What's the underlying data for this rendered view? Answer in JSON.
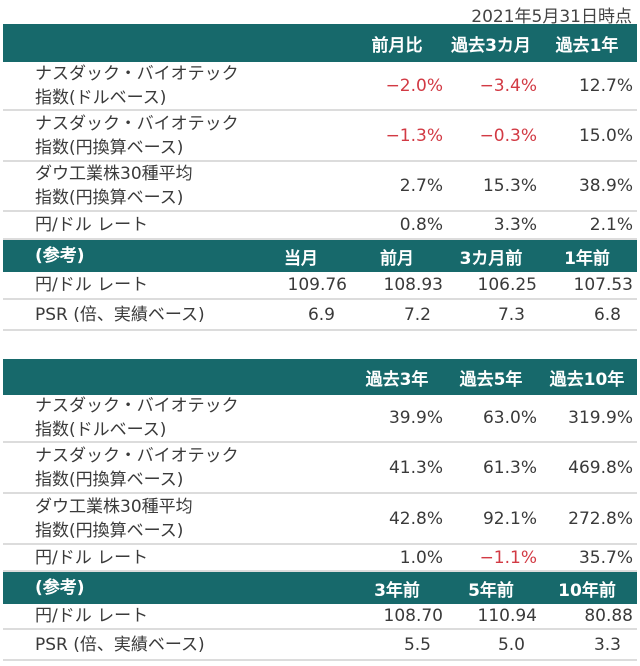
{
  "date": "2021年5月31日時点",
  "table1": {
    "headers": [
      "前月比",
      "過去3カ月",
      "過去1年"
    ],
    "rows": [
      {
        "label1": "ナスダック・バイオテック",
        "label2": "指数(ドルベース)",
        "values": [
          "−2.0%",
          "−3.4%",
          "12.7%"
        ],
        "negative": [
          true,
          true,
          false
        ]
      },
      {
        "label1": "ナスダック・バイオテック",
        "label2": "指数(円換算ベース)",
        "values": [
          "−1.3%",
          "−0.3%",
          "15.0%"
        ],
        "negative": [
          true,
          true,
          false
        ]
      },
      {
        "label1": "ダウ工業株30種平均",
        "label2": "指数(円換算ベース)",
        "values": [
          "2.7%",
          "15.3%",
          "38.9%"
        ],
        "negative": [
          false,
          false,
          false
        ]
      },
      {
        "label1": "円/ドル レート",
        "label2": "",
        "values": [
          "0.8%",
          "3.3%",
          "2.1%"
        ],
        "negative": [
          false,
          false,
          false
        ]
      }
    ],
    "ref_label": "(参考)",
    "ref_headers": [
      "当月",
      "前月",
      "3カ月前",
      "1年前"
    ],
    "ref_rows": [
      {
        "label": "円/ドル レート",
        "values": [
          "109.76",
          "108.93",
          "106.25",
          "107.53"
        ]
      },
      {
        "label": "PSR (倍、実績ベース)",
        "values": [
          "6.9",
          "7.2",
          "7.3",
          "6.8"
        ]
      }
    ]
  },
  "table2": {
    "headers": [
      "過去3年",
      "過去5年",
      "過去10年"
    ],
    "rows": [
      {
        "label1": "ナスダック・バイオテック",
        "label2": "指数(ドルベース)",
        "values": [
          "39.9%",
          "63.0%",
          "319.9%"
        ],
        "negative": [
          false,
          false,
          false
        ]
      },
      {
        "label1": "ナスダック・バイオテック",
        "label2": "指数(円換算ベース)",
        "values": [
          "41.3%",
          "61.3%",
          "469.8%"
        ],
        "negative": [
          false,
          false,
          false
        ]
      },
      {
        "label1": "ダウ工業株30種平均",
        "label2": "指数(円換算ベース)",
        "values": [
          "42.8%",
          "92.1%",
          "272.8%"
        ],
        "negative": [
          false,
          false,
          false
        ]
      },
      {
        "label1": "円/ドル レート",
        "label2": "",
        "values": [
          "1.0%",
          "−1.1%",
          "35.7%"
        ],
        "negative": [
          false,
          true,
          false
        ]
      }
    ],
    "ref_label": "(参考)",
    "ref_headers": [
      "3年前",
      "5年前",
      "10年前"
    ],
    "ref_rows": [
      {
        "label": "円/ドル レート",
        "values": [
          "108.70",
          "110.94",
          "80.88"
        ]
      },
      {
        "label": "PSR (倍、実績ベース)",
        "values": [
          "5.5",
          "5.0",
          "3.3"
        ]
      }
    ]
  },
  "colors": {
    "header": "#17696b",
    "negative": "#d23a44"
  }
}
